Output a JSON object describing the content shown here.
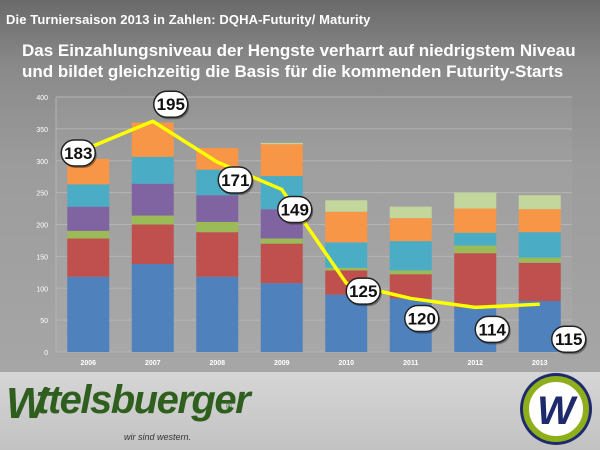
{
  "header": {
    "title": "Die Turniersaison 2013 in Zahlen: DQHA-Futurity/ Maturity"
  },
  "headline": {
    "text": "Das Einzahlungsniveau der Hengste verharrt auf niedrigstem Niveau und bildet gleichzeitig die Basis für die kommenden Futurity-Starts"
  },
  "footer": {
    "brand": "ttelsbuerger",
    "brand_initial": "W",
    "registered": "®",
    "tagline": "wir sind western.",
    "seal_letter": "W"
  },
  "chart_data": {
    "type": "bar",
    "stacked": true,
    "categories": [
      "2006",
      "2007",
      "2008",
      "2009",
      "2010",
      "2011",
      "2012",
      "2013"
    ],
    "ylim": [
      0,
      400
    ],
    "yticks": [
      0,
      50,
      100,
      150,
      200,
      250,
      300,
      350,
      400
    ],
    "grid": true,
    "series": [
      {
        "color": "#4f81bd",
        "values": [
          118,
          138,
          118,
          108,
          90,
          84,
          70,
          80
        ]
      },
      {
        "color": "#c0504d",
        "values": [
          60,
          62,
          70,
          62,
          38,
          38,
          85,
          60
        ]
      },
      {
        "color": "#9bbb59",
        "values": [
          12,
          14,
          16,
          8,
          4,
          6,
          12,
          8
        ]
      },
      {
        "color": "#8064a2",
        "values": [
          38,
          50,
          42,
          46,
          0,
          0,
          0,
          0
        ]
      },
      {
        "color": "#4bacc6",
        "values": [
          35,
          42,
          40,
          52,
          40,
          46,
          20,
          40
        ]
      },
      {
        "color": "#f79646",
        "values": [
          40,
          54,
          34,
          50,
          48,
          36,
          38,
          36
        ]
      },
      {
        "color": "#c3d69b",
        "values": [
          0,
          0,
          0,
          2,
          18,
          18,
          25,
          22
        ]
      }
    ],
    "overlay_line": {
      "color": "#ffff00",
      "values": [
        320,
        362,
        298,
        255,
        108,
        84,
        70,
        75
      ],
      "labels": [
        "183",
        "195",
        "171",
        "149",
        "125",
        "120",
        "114",
        "115"
      ]
    }
  }
}
